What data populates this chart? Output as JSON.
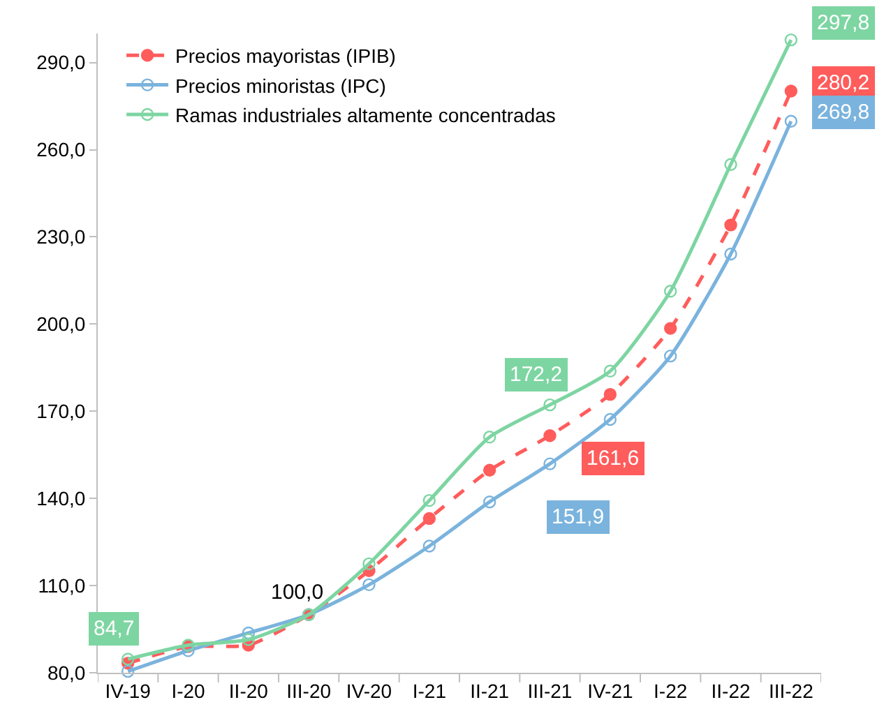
{
  "chart_data": {
    "type": "line",
    "categories": [
      "IV-19",
      "I-20",
      "II-20",
      "III-20",
      "IV-20",
      "I-21",
      "II-21",
      "III-21",
      "IV-21",
      "I-22",
      "II-22",
      "III-22"
    ],
    "series": [
      {
        "name": "Precios mayoristas (IPIB)",
        "color": "#ff5c5c",
        "line_style": "dashed",
        "values": [
          83.3,
          89.0,
          89.5,
          100.0,
          115.1,
          133.1,
          149.7,
          161.6,
          175.8,
          198.5,
          234.1,
          280.2
        ],
        "value_labels": [
          null,
          null,
          null,
          null,
          null,
          null,
          null,
          "161,6",
          null,
          null,
          null,
          "280,2"
        ]
      },
      {
        "name": "Precios minoristas (IPC)",
        "color": "#7ab3dd",
        "line_style": "solid",
        "values": [
          80.5,
          87.6,
          93.7,
          100.0,
          110.3,
          123.6,
          138.8,
          151.9,
          167.2,
          189.0,
          224.1,
          269.8
        ],
        "value_labels": [
          null,
          null,
          null,
          null,
          null,
          null,
          null,
          "151,9",
          null,
          null,
          null,
          "269,8"
        ]
      },
      {
        "name": "Ramas industriales altamente concentradas",
        "color": "#7dd5a2",
        "line_style": "solid",
        "values": [
          84.7,
          89.5,
          91.4,
          100.0,
          117.5,
          139.3,
          161.1,
          172.2,
          183.8,
          211.3,
          254.9,
          297.8
        ],
        "value_labels": [
          "84,7",
          null,
          null,
          null,
          null,
          null,
          null,
          "172,2",
          null,
          null,
          null,
          "297,8"
        ]
      }
    ],
    "annotations": [
      {
        "text": "100,0",
        "x": "III-20",
        "y": 100.0
      }
    ],
    "ylim": [
      80,
      300
    ],
    "yticks": [
      {
        "value": 80,
        "label": "80,0"
      },
      {
        "value": 110,
        "label": "110,0"
      },
      {
        "value": 140,
        "label": "140,0"
      },
      {
        "value": 170,
        "label": "170,0"
      },
      {
        "value": 200,
        "label": "200,0"
      },
      {
        "value": 230,
        "label": "230,0"
      },
      {
        "value": 260,
        "label": "260,0"
      },
      {
        "value": 290,
        "label": "290,0"
      }
    ],
    "grid": false,
    "legend": "top left",
    "marker": "circle"
  }
}
